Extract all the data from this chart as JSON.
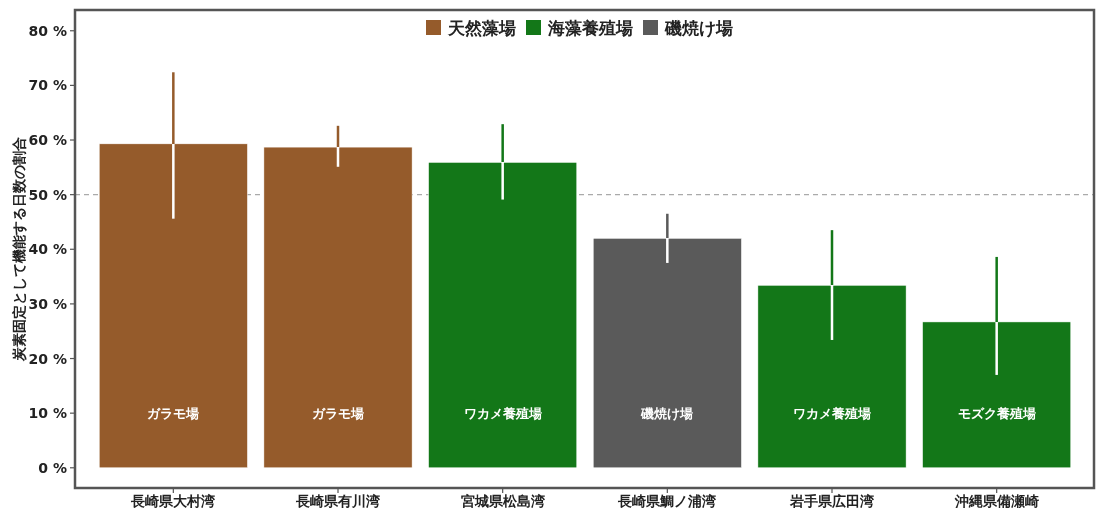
{
  "chart_data": {
    "type": "bar",
    "ylabel": "炭素固定として機能する日数の割合",
    "categories": [
      "長崎県大村湾",
      "長崎県有川湾",
      "宮城県松島湾",
      "長崎県鯛ノ浦湾",
      "岩手県広田湾",
      "沖縄県備瀬崎"
    ],
    "series": [
      {
        "name": "天然藻場",
        "color": "#955b2b",
        "values": [
          59.3,
          58.7,
          null,
          null,
          null,
          null
        ],
        "errors": [
          [
            45.6,
            72.4
          ],
          [
            55.1,
            62.6
          ],
          null,
          null,
          null,
          null
        ]
      },
      {
        "name": "海藻養殖場",
        "color": "#137718",
        "values": [
          null,
          null,
          55.9,
          null,
          33.4,
          26.7
        ],
        "errors": [
          null,
          null,
          [
            49.1,
            62.9
          ],
          null,
          [
            23.4,
            43.5
          ],
          [
            17.0,
            38.6
          ]
        ]
      },
      {
        "name": "磯焼け場",
        "color": "#5a5a5a",
        "values": [
          null,
          null,
          null,
          42.0,
          null,
          null
        ],
        "errors": [
          null,
          null,
          null,
          [
            37.5,
            46.5
          ],
          null,
          null
        ]
      }
    ],
    "annotations": [
      "ガラモ場",
      "ガラモ場",
      "ワカメ養殖場",
      "磯焼け場",
      "ワカメ養殖場",
      "モズク養殖場"
    ],
    "ylim": [
      -3.7,
      83.8
    ],
    "yticks": [
      {
        "value": 0,
        "label": "0 %"
      },
      {
        "value": 10,
        "label": "10 %"
      },
      {
        "value": 20,
        "label": "20 %"
      },
      {
        "value": 30,
        "label": "30 %"
      },
      {
        "value": 40,
        "label": "40 %"
      },
      {
        "value": 50,
        "label": "50 %"
      },
      {
        "value": 60,
        "label": "60 %"
      },
      {
        "value": 70,
        "label": "70 %"
      },
      {
        "value": 80,
        "label": "80 %"
      }
    ],
    "ref_lines": [
      {
        "axis": "y",
        "value": 50,
        "color": "#aaaaaa",
        "line_style": "dashed"
      }
    ],
    "legend": "top",
    "grid": false
  }
}
